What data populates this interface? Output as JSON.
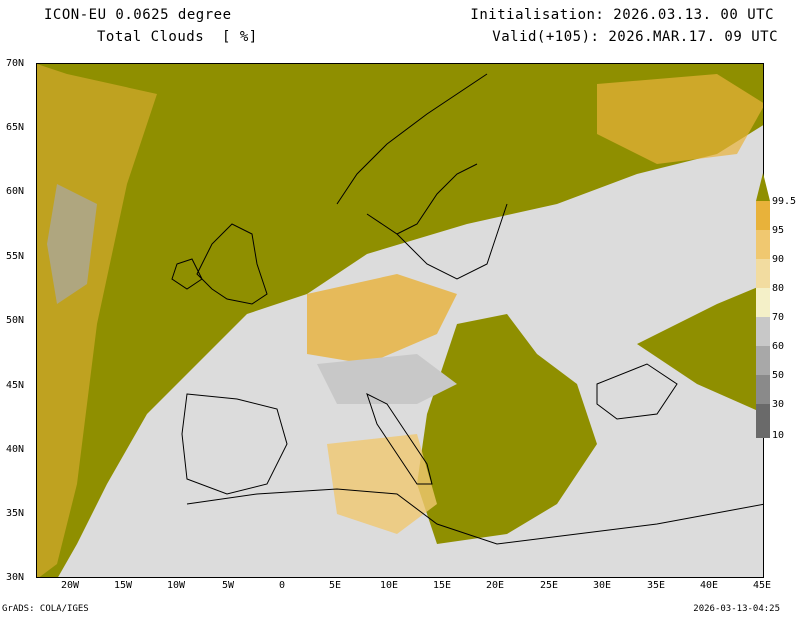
{
  "header": {
    "model": "ICON-EU 0.0625 degree",
    "variable": "Total Clouds  [ %]",
    "initialisation": "Initialisation: 2026.03.13. 00 UTC",
    "valid": "Valid(+105): 2026.MAR.17. 09 UTC"
  },
  "axes": {
    "lat_labels": [
      "70N",
      "65N",
      "60N",
      "55N",
      "50N",
      "45N",
      "40N",
      "35N",
      "30N"
    ],
    "lon_labels": [
      "20W",
      "15W",
      "10W",
      "5W",
      "0",
      "5E",
      "10E",
      "15E",
      "20E",
      "25E",
      "30E",
      "35E",
      "40E",
      "45E"
    ]
  },
  "legend": {
    "levels": [
      "99.5",
      "95",
      "90",
      "80",
      "70",
      "60",
      "50",
      "30",
      "10"
    ],
    "colors": [
      "#8f8f00",
      "#e8b23a",
      "#f0c870",
      "#f2dca0",
      "#f4f0c8",
      "#c8c8c8",
      "#a8a8a8",
      "#8a8a8a",
      "#6a6a6a",
      "#4e4e4e"
    ]
  },
  "footer": {
    "left": "GrADS: COLA/IGES",
    "right": "2026-03-13-04:25"
  },
  "colors": {
    "clear": "#dcdcdc",
    "overcast": "#8f8f00",
    "coast": "#000000"
  }
}
